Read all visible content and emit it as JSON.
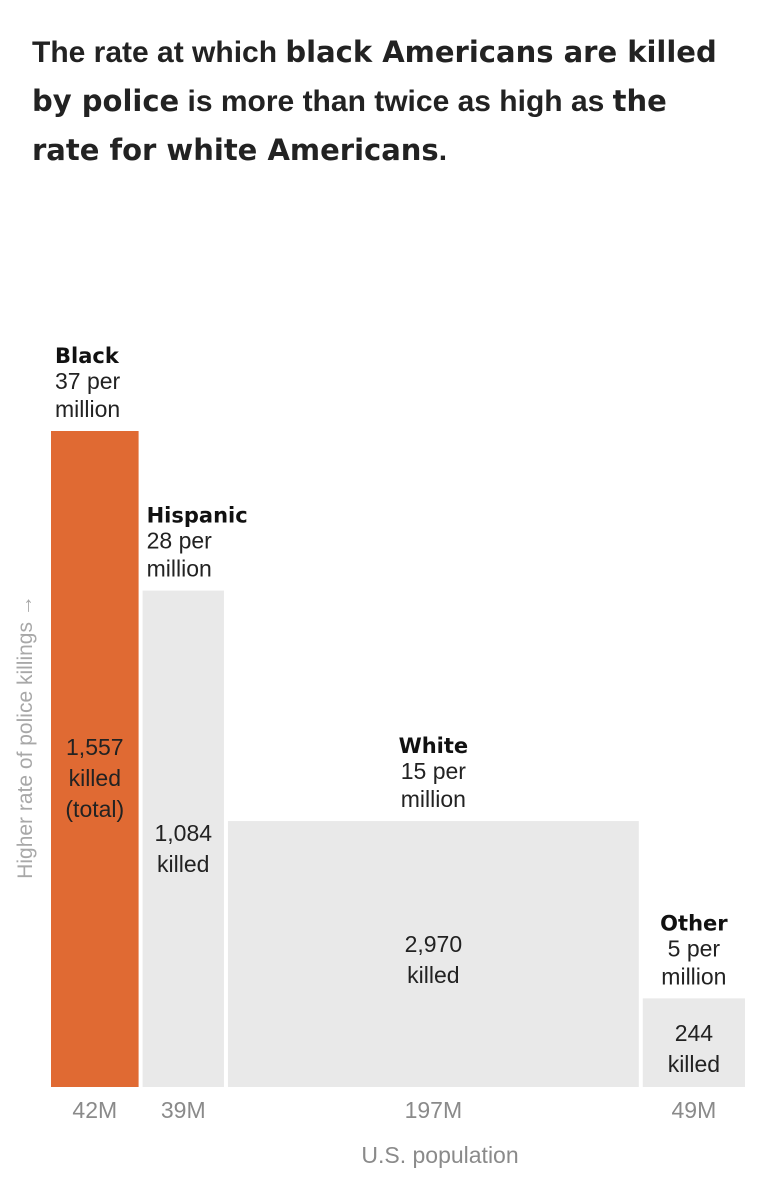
{
  "headline": {
    "p1": "The rate at which ",
    "b1": "black Americans are killed by police",
    "p2": " is more than twice as high as ",
    "b2": "the rate for white Americans",
    "p3": "."
  },
  "chart_data": {
    "type": "bar",
    "title": "The rate at which black Americans are killed by police is more than twice as high as the rate for white Americans.",
    "xlabel": "U.S. population",
    "ylabel": "Higher rate of police killings →",
    "ylim": [
      0,
      37
    ],
    "categories": [
      "Black",
      "Hispanic",
      "White",
      "Other"
    ],
    "series": [
      {
        "name": "Police killings",
        "rate_per_million": [
          37,
          28,
          15,
          5
        ],
        "population_millions": [
          42,
          39,
          197,
          49
        ],
        "killed": [
          1557,
          1084,
          2970,
          244
        ]
      }
    ],
    "bars": [
      {
        "name": "Black",
        "rate_label": [
          "37 per",
          "million"
        ],
        "killed_label": [
          "1,557",
          "killed",
          "(total)"
        ],
        "pop_label": "42M",
        "highlight": true
      },
      {
        "name": "Hispanic",
        "rate_label": [
          "28 per",
          "million"
        ],
        "killed_label": [
          "1,084",
          "killed"
        ],
        "pop_label": "39M",
        "highlight": false
      },
      {
        "name": "White",
        "rate_label": [
          "15 per",
          "million"
        ],
        "killed_label": [
          "2,970",
          "killed"
        ],
        "pop_label": "197M",
        "highlight": false
      },
      {
        "name": "Other",
        "rate_label": [
          "5 per",
          "million"
        ],
        "killed_label": [
          "244",
          "killed"
        ],
        "pop_label": "49M",
        "highlight": false
      }
    ],
    "colors": {
      "highlight": "#e06a33",
      "default": "#e9e9e9"
    }
  }
}
